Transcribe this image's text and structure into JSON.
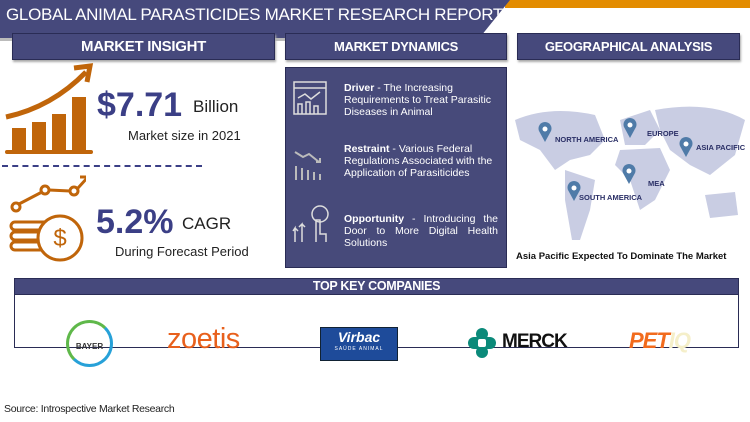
{
  "title": "GLOBAL ANIMAL PARASTICIDES MARKET RESEARCH REPORT",
  "sections": {
    "insight": "MARKET INSIGHT",
    "dynamics": "MARKET DYNAMICS",
    "geo": "GEOGRAPHICAL ANALYSIS",
    "companies": "TOP KEY COMPANIES"
  },
  "insight": {
    "market_value": "$7.71",
    "market_unit": "Billion",
    "market_caption": "Market size in 2021",
    "cagr_value": "5.2%",
    "cagr_unit": "CAGR",
    "cagr_caption": "During Forecast Period"
  },
  "dynamics": [
    {
      "label": "Driver",
      "text": " - The Increasing Requirements to Treat Parasitic Diseases in Animal",
      "icon": "analytics-dashboard-icon"
    },
    {
      "label": "Restraint",
      "text": " - Various Federal Regulations Associated with the Application of Parasiticides",
      "icon": "declining-chart-icon"
    },
    {
      "label": "Opportunity",
      "text": " - Introducing the Door to More Digital Health Solutions",
      "icon": "growth-touch-icon"
    }
  ],
  "geo": {
    "regions": [
      "NORTH AMERICA",
      "EUROPE",
      "ASIA PACIFIC",
      "MEA",
      "SOUTH AMERICA"
    ],
    "caption": "Asia Pacific Expected To Dominate The Market"
  },
  "companies": [
    {
      "name": "BAYER"
    },
    {
      "name": "zoetis"
    },
    {
      "name": "Virbac",
      "sub": "SAÚDE ANIMAL"
    },
    {
      "name": "MERCK"
    },
    {
      "name": "PET",
      "suffix": "IQ"
    }
  ],
  "source": "Source: Introspective Market Research",
  "colors": {
    "navy": "#46497c",
    "orange": "#c0650a",
    "accent_orange": "#e38c00",
    "value_text": "#3b3f86"
  }
}
